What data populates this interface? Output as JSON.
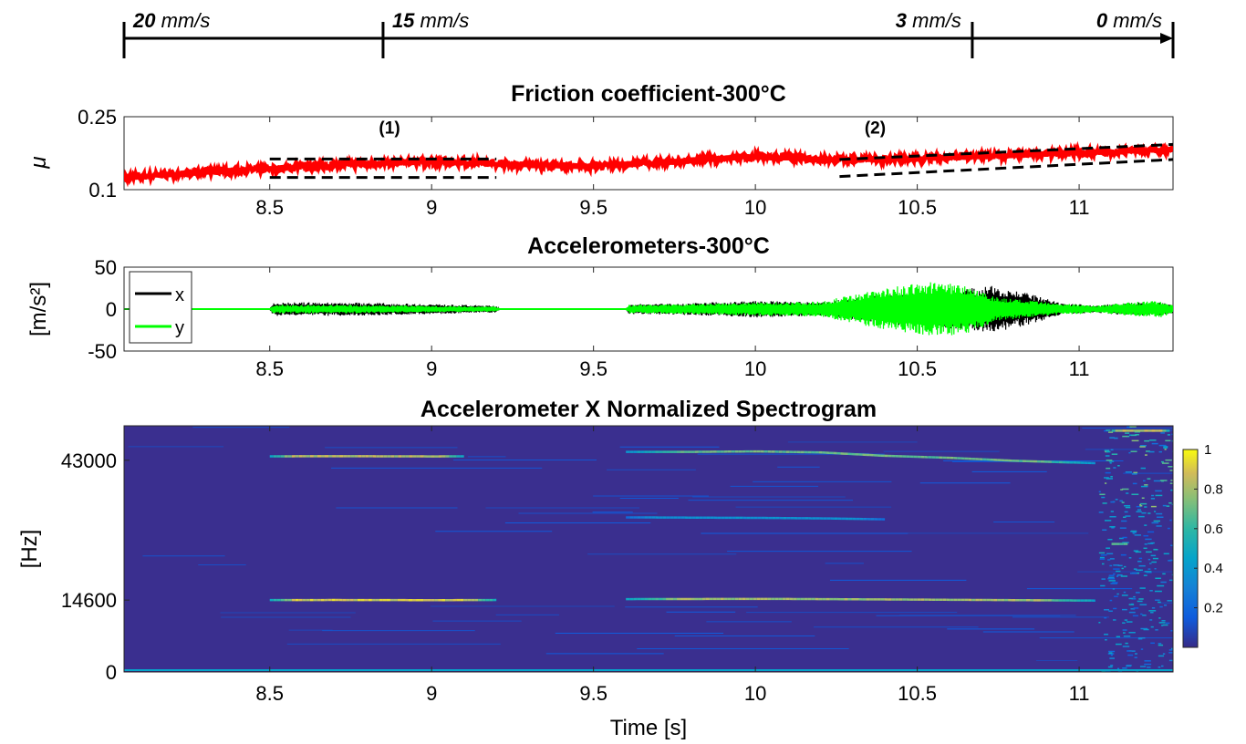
{
  "speed_bar": {
    "segments": [
      {
        "value": "20",
        "unit": " mm/s",
        "t": 8.05
      },
      {
        "value": "15",
        "unit": " mm/s",
        "t": 8.85
      },
      {
        "value": "3",
        "unit": " mm/s",
        "t": 10.67
      },
      {
        "value": "0",
        "unit": " mm/s",
        "t": 11.29
      }
    ]
  },
  "chart_data": [
    {
      "type": "line",
      "title": "Friction coefficient-300°C",
      "xlabel": "",
      "ylabel": "μ",
      "xlim": [
        8.05,
        11.29
      ],
      "ylim": [
        0.1,
        0.25
      ],
      "xticks": [
        "8.5",
        "9",
        "9.5",
        "10",
        "10.5",
        "11"
      ],
      "yticks": [
        "0.1",
        "0.25"
      ],
      "series": [
        {
          "color": "#ff0000",
          "x": [
            8.05,
            8.25,
            8.5,
            8.75,
            9.0,
            9.25,
            9.5,
            9.75,
            10.0,
            10.25,
            10.5,
            10.75,
            11.0,
            11.29
          ],
          "y": [
            0.124,
            0.134,
            0.143,
            0.152,
            0.158,
            0.152,
            0.148,
            0.158,
            0.168,
            0.162,
            0.163,
            0.17,
            0.176,
            0.182
          ]
        }
      ],
      "annotations": [
        {
          "label": "(1)",
          "x": 8.87,
          "y": 0.215
        },
        {
          "label": "(2)",
          "x": 10.37,
          "y": 0.215
        }
      ]
    },
    {
      "type": "line",
      "title": "Accelerometers-300°C",
      "xlabel": "",
      "ylabel": "[m/s²]",
      "xlim": [
        8.05,
        11.29
      ],
      "ylim": [
        -50,
        50
      ],
      "xticks": [
        "8.5",
        "9",
        "9.5",
        "10",
        "10.5",
        "11"
      ],
      "yticks": [
        "50",
        "0",
        "-50"
      ],
      "legend": "top-left",
      "series": [
        {
          "name": "x",
          "color": "#000000",
          "x": [
            8.05,
            8.5,
            8.51,
            8.75,
            9.0,
            9.2,
            9.21,
            9.6,
            9.61,
            9.8,
            10.0,
            10.2,
            10.4,
            10.55,
            10.65,
            10.75,
            10.85,
            10.95,
            11.0,
            11.05,
            11.15,
            11.25,
            11.29
          ],
          "y": [
            0,
            0,
            8,
            8,
            6,
            4,
            0,
            0,
            6,
            7,
            10,
            8,
            18,
            22,
            25,
            28,
            18,
            6,
            6,
            4,
            8,
            8,
            5
          ]
        },
        {
          "name": "y",
          "color": "#00ff00",
          "x": [
            8.05,
            8.5,
            8.51,
            8.75,
            9.0,
            9.2,
            9.21,
            9.6,
            9.61,
            9.8,
            10.0,
            10.2,
            10.4,
            10.55,
            10.65,
            10.75,
            10.85,
            10.95,
            11.0,
            11.05,
            11.15,
            11.25,
            11.29
          ],
          "y": [
            0,
            0,
            5,
            5,
            4,
            3,
            0,
            0,
            5,
            6,
            8,
            9,
            25,
            33,
            30,
            14,
            10,
            6,
            6,
            4,
            8,
            10,
            5
          ]
        }
      ]
    },
    {
      "type": "heatmap",
      "title": "Accelerometer X Normalized Spectrogram",
      "xlabel": "Time [s]",
      "ylabel": "[Hz]",
      "xlim": [
        8.05,
        11.29
      ],
      "ylim": [
        0,
        50000
      ],
      "xticks": [
        "8.5",
        "9",
        "9.5",
        "10",
        "10.5",
        "11"
      ],
      "yticks": [
        "0",
        "14600",
        "43000"
      ],
      "colorbar": {
        "ticks": [
          "1",
          "0.8",
          "0.6",
          "0.4",
          "0.2"
        ],
        "range": [
          0,
          1
        ]
      },
      "ridges": [
        {
          "x": [
            8.5,
            8.7,
            8.9,
            9.0,
            9.1,
            9.2
          ],
          "y": [
            14600,
            14620,
            14600,
            14580,
            14600,
            14620
          ],
          "peak": 0.95
        },
        {
          "x": [
            9.6,
            9.8,
            10.0,
            10.1,
            10.2,
            10.5,
            11.05
          ],
          "y": [
            14800,
            14820,
            14850,
            14830,
            14800,
            14700,
            14500
          ],
          "peak": 0.85
        },
        {
          "x": [
            8.5,
            8.7,
            8.9,
            9.0,
            9.1
          ],
          "y": [
            43800,
            43820,
            43800,
            43780,
            43800
          ],
          "peak": 0.9
        },
        {
          "x": [
            9.6,
            9.8,
            10.0,
            10.2,
            10.4,
            10.6,
            10.8,
            11.05
          ],
          "y": [
            44700,
            44700,
            44800,
            44600,
            43900,
            43500,
            42900,
            42400
          ],
          "peak": 0.75
        },
        {
          "x": [
            9.6,
            9.8,
            10.0,
            10.2,
            10.4
          ],
          "y": [
            31400,
            31350,
            31300,
            31200,
            31000
          ],
          "peak": 0.4
        },
        {
          "x": [
            11.1,
            11.15
          ],
          "y": [
            26000,
            26000
          ],
          "peak": 0.7
        },
        {
          "x": [
            11.1,
            11.28
          ],
          "y": [
            49000,
            49000
          ],
          "peak": 0.9
        }
      ]
    }
  ]
}
